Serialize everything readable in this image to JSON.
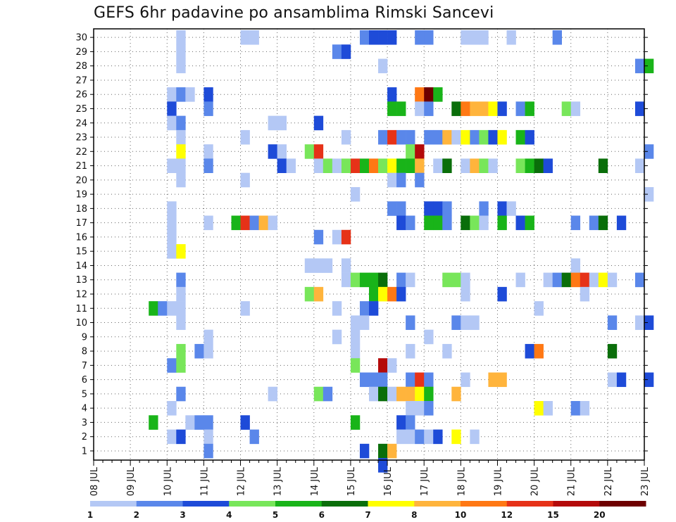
{
  "chart_data": {
    "type": "heatmap",
    "title": "GEFS 6hr padavine po ansamblima Rimski Sancevi",
    "xlabel": "",
    "ylabel": "",
    "x_ticks": [
      "08 JUL",
      "09 JUL",
      "10 JUL",
      "11 JUL",
      "12 JUL",
      "13 JUL",
      "14 JUL",
      "15 JUL",
      "16 JUL",
      "17 JUL",
      "18 JUL",
      "19 JUL",
      "20 JUL",
      "21 JUL",
      "22 JUL",
      "23 JUL"
    ],
    "y_ticks": [
      "1",
      "2",
      "3",
      "4",
      "5",
      "6",
      "7",
      "8",
      "9",
      "10",
      "11",
      "12",
      "13",
      "14",
      "15",
      "16",
      "17",
      "18",
      "19",
      "20",
      "21",
      "22",
      "23",
      "24",
      "25",
      "26",
      "27",
      "28",
      "29",
      "30"
    ],
    "x_range": [
      "08 JUL 00Z",
      "23 JUL 00Z"
    ],
    "steps_per_day": 4,
    "grid": true,
    "legend": {
      "position": "bottom",
      "levels": [
        "1",
        "2",
        "3",
        "4",
        "5",
        "6",
        "7",
        "8",
        "10",
        "12",
        "15",
        "20"
      ],
      "colors": [
        "#b4c8f5",
        "#5a87ea",
        "#1e4bd8",
        "#78e65a",
        "#19b419",
        "#0a6e0a",
        "#ffff00",
        "#ffb43c",
        "#ff7814",
        "#e63218",
        "#b40a0a",
        "#6e0000"
      ]
    },
    "cells": [
      [
        30,
        9,
        0
      ],
      [
        30,
        16,
        0
      ],
      [
        30,
        17,
        0
      ],
      [
        30,
        29,
        1
      ],
      [
        30,
        30,
        2
      ],
      [
        30,
        31,
        2
      ],
      [
        30,
        32,
        2
      ],
      [
        30,
        35,
        1
      ],
      [
        30,
        36,
        1
      ],
      [
        30,
        40,
        0
      ],
      [
        30,
        41,
        0
      ],
      [
        30,
        42,
        0
      ],
      [
        30,
        45,
        0
      ],
      [
        30,
        50,
        1
      ],
      [
        29,
        9,
        0
      ],
      [
        29,
        26,
        1
      ],
      [
        29,
        27,
        2
      ],
      [
        28,
        9,
        0
      ],
      [
        28,
        31,
        0
      ],
      [
        28,
        59,
        1
      ],
      [
        28,
        60,
        4
      ],
      [
        26,
        8,
        0
      ],
      [
        26,
        9,
        1
      ],
      [
        26,
        10,
        0
      ],
      [
        26,
        12,
        2
      ],
      [
        26,
        32,
        2
      ],
      [
        26,
        35,
        8
      ],
      [
        26,
        36,
        11
      ],
      [
        26,
        37,
        4
      ],
      [
        25,
        8,
        2
      ],
      [
        25,
        12,
        1
      ],
      [
        25,
        32,
        4
      ],
      [
        25,
        33,
        4
      ],
      [
        25,
        35,
        0
      ],
      [
        25,
        36,
        1
      ],
      [
        25,
        39,
        5
      ],
      [
        25,
        40,
        8
      ],
      [
        25,
        41,
        7
      ],
      [
        25,
        42,
        7
      ],
      [
        25,
        43,
        6
      ],
      [
        25,
        44,
        2
      ],
      [
        25,
        46,
        1
      ],
      [
        25,
        47,
        4
      ],
      [
        25,
        51,
        3
      ],
      [
        25,
        52,
        0
      ],
      [
        25,
        59,
        2
      ],
      [
        24,
        8,
        0
      ],
      [
        24,
        9,
        1
      ],
      [
        24,
        19,
        0
      ],
      [
        24,
        20,
        0
      ],
      [
        24,
        24,
        2
      ],
      [
        23,
        9,
        0
      ],
      [
        23,
        16,
        0
      ],
      [
        23,
        27,
        0
      ],
      [
        23,
        31,
        1
      ],
      [
        23,
        32,
        9
      ],
      [
        23,
        33,
        1
      ],
      [
        23,
        34,
        1
      ],
      [
        23,
        36,
        1
      ],
      [
        23,
        37,
        1
      ],
      [
        23,
        38,
        7
      ],
      [
        23,
        39,
        0
      ],
      [
        23,
        40,
        6
      ],
      [
        23,
        41,
        1
      ],
      [
        23,
        42,
        3
      ],
      [
        23,
        43,
        2
      ],
      [
        23,
        44,
        6
      ],
      [
        23,
        46,
        4
      ],
      [
        23,
        47,
        2
      ],
      [
        22,
        9,
        6
      ],
      [
        22,
        12,
        0
      ],
      [
        22,
        19,
        2
      ],
      [
        22,
        20,
        0
      ],
      [
        22,
        23,
        3
      ],
      [
        22,
        24,
        9
      ],
      [
        22,
        34,
        3
      ],
      [
        22,
        35,
        10
      ],
      [
        22,
        60,
        1
      ],
      [
        21,
        8,
        0
      ],
      [
        21,
        9,
        0
      ],
      [
        21,
        12,
        1
      ],
      [
        21,
        20,
        2
      ],
      [
        21,
        21,
        0
      ],
      [
        21,
        24,
        0
      ],
      [
        21,
        25,
        3
      ],
      [
        21,
        26,
        0
      ],
      [
        21,
        27,
        3
      ],
      [
        21,
        28,
        9
      ],
      [
        21,
        29,
        4
      ],
      [
        21,
        30,
        8
      ],
      [
        21,
        31,
        3
      ],
      [
        21,
        32,
        6
      ],
      [
        21,
        33,
        4
      ],
      [
        21,
        34,
        4
      ],
      [
        21,
        35,
        7
      ],
      [
        21,
        37,
        0
      ],
      [
        21,
        38,
        5
      ],
      [
        21,
        40,
        0
      ],
      [
        21,
        41,
        7
      ],
      [
        21,
        42,
        3
      ],
      [
        21,
        43,
        0
      ],
      [
        21,
        46,
        3
      ],
      [
        21,
        47,
        4
      ],
      [
        21,
        48,
        5
      ],
      [
        21,
        49,
        2
      ],
      [
        21,
        55,
        5
      ],
      [
        21,
        59,
        0
      ],
      [
        20,
        9,
        0
      ],
      [
        20,
        16,
        0
      ],
      [
        20,
        32,
        0
      ],
      [
        20,
        33,
        1
      ],
      [
        20,
        35,
        1
      ],
      [
        19,
        28,
        0
      ],
      [
        19,
        60,
        0
      ],
      [
        18,
        8,
        0
      ],
      [
        18,
        32,
        1
      ],
      [
        18,
        33,
        1
      ],
      [
        18,
        36,
        2
      ],
      [
        18,
        37,
        2
      ],
      [
        18,
        38,
        1
      ],
      [
        18,
        42,
        1
      ],
      [
        18,
        44,
        2
      ],
      [
        18,
        45,
        0
      ],
      [
        17,
        8,
        0
      ],
      [
        17,
        12,
        0
      ],
      [
        17,
        15,
        4
      ],
      [
        17,
        16,
        9
      ],
      [
        17,
        17,
        1
      ],
      [
        17,
        18,
        7
      ],
      [
        17,
        19,
        0
      ],
      [
        17,
        33,
        2
      ],
      [
        17,
        34,
        1
      ],
      [
        17,
        36,
        4
      ],
      [
        17,
        37,
        4
      ],
      [
        17,
        38,
        1
      ],
      [
        17,
        40,
        5
      ],
      [
        17,
        41,
        3
      ],
      [
        17,
        42,
        0
      ],
      [
        17,
        44,
        4
      ],
      [
        17,
        46,
        2
      ],
      [
        17,
        47,
        4
      ],
      [
        17,
        52,
        1
      ],
      [
        17,
        54,
        1
      ],
      [
        17,
        55,
        5
      ],
      [
        17,
        57,
        2
      ],
      [
        16,
        8,
        0
      ],
      [
        16,
        24,
        1
      ],
      [
        16,
        26,
        0
      ],
      [
        16,
        27,
        9
      ],
      [
        15,
        8,
        0
      ],
      [
        15,
        9,
        6
      ],
      [
        14,
        23,
        0
      ],
      [
        14,
        24,
        0
      ],
      [
        14,
        25,
        0
      ],
      [
        14,
        27,
        0
      ],
      [
        14,
        52,
        0
      ],
      [
        13,
        9,
        1
      ],
      [
        13,
        27,
        0
      ],
      [
        13,
        28,
        3
      ],
      [
        13,
        29,
        4
      ],
      [
        13,
        30,
        4
      ],
      [
        13,
        31,
        5
      ],
      [
        13,
        33,
        1
      ],
      [
        13,
        34,
        0
      ],
      [
        13,
        38,
        3
      ],
      [
        13,
        39,
        3
      ],
      [
        13,
        40,
        0
      ],
      [
        13,
        46,
        0
      ],
      [
        13,
        49,
        0
      ],
      [
        13,
        50,
        1
      ],
      [
        13,
        51,
        5
      ],
      [
        13,
        52,
        8
      ],
      [
        13,
        53,
        9
      ],
      [
        13,
        54,
        0
      ],
      [
        13,
        55,
        6
      ],
      [
        13,
        56,
        0
      ],
      [
        13,
        59,
        1
      ],
      [
        12,
        9,
        0
      ],
      [
        12,
        23,
        3
      ],
      [
        12,
        24,
        7
      ],
      [
        12,
        30,
        4
      ],
      [
        12,
        31,
        6
      ],
      [
        12,
        32,
        8
      ],
      [
        12,
        33,
        2
      ],
      [
        12,
        40,
        0
      ],
      [
        12,
        44,
        2
      ],
      [
        12,
        53,
        0
      ],
      [
        11,
        6,
        4
      ],
      [
        11,
        7,
        1
      ],
      [
        11,
        8,
        0
      ],
      [
        11,
        9,
        0
      ],
      [
        11,
        16,
        0
      ],
      [
        11,
        26,
        0
      ],
      [
        11,
        29,
        1
      ],
      [
        11,
        30,
        2
      ],
      [
        11,
        48,
        0
      ],
      [
        10,
        9,
        0
      ],
      [
        10,
        28,
        0
      ],
      [
        10,
        29,
        0
      ],
      [
        10,
        34,
        1
      ],
      [
        10,
        39,
        1
      ],
      [
        10,
        40,
        0
      ],
      [
        10,
        41,
        0
      ],
      [
        10,
        56,
        1
      ],
      [
        10,
        59,
        0
      ],
      [
        10,
        60,
        2
      ],
      [
        9,
        12,
        0
      ],
      [
        9,
        26,
        0
      ],
      [
        9,
        28,
        0
      ],
      [
        9,
        36,
        0
      ],
      [
        8,
        9,
        3
      ],
      [
        8,
        11,
        1
      ],
      [
        8,
        12,
        0
      ],
      [
        8,
        28,
        0
      ],
      [
        8,
        34,
        0
      ],
      [
        8,
        38,
        0
      ],
      [
        8,
        47,
        2
      ],
      [
        8,
        48,
        8
      ],
      [
        8,
        56,
        5
      ],
      [
        7,
        8,
        1
      ],
      [
        7,
        9,
        3
      ],
      [
        7,
        28,
        3
      ],
      [
        7,
        31,
        10
      ],
      [
        7,
        32,
        0
      ],
      [
        6,
        29,
        1
      ],
      [
        6,
        30,
        1
      ],
      [
        6,
        31,
        1
      ],
      [
        6,
        34,
        1
      ],
      [
        6,
        35,
        9
      ],
      [
        6,
        36,
        1
      ],
      [
        6,
        40,
        0
      ],
      [
        6,
        43,
        7
      ],
      [
        6,
        44,
        7
      ],
      [
        6,
        56,
        0
      ],
      [
        6,
        57,
        2
      ],
      [
        6,
        60,
        2
      ],
      [
        5,
        9,
        1
      ],
      [
        5,
        19,
        0
      ],
      [
        5,
        24,
        3
      ],
      [
        5,
        25,
        1
      ],
      [
        5,
        30,
        0
      ],
      [
        5,
        31,
        5
      ],
      [
        5,
        32,
        0
      ],
      [
        5,
        33,
        7
      ],
      [
        5,
        34,
        7
      ],
      [
        5,
        35,
        6
      ],
      [
        5,
        36,
        4
      ],
      [
        5,
        39,
        7
      ],
      [
        4,
        8,
        0
      ],
      [
        4,
        34,
        0
      ],
      [
        4,
        35,
        0
      ],
      [
        4,
        36,
        1
      ],
      [
        4,
        48,
        6
      ],
      [
        4,
        49,
        0
      ],
      [
        4,
        52,
        1
      ],
      [
        4,
        53,
        0
      ],
      [
        3,
        6,
        4
      ],
      [
        3,
        10,
        0
      ],
      [
        3,
        11,
        1
      ],
      [
        3,
        12,
        1
      ],
      [
        3,
        16,
        2
      ],
      [
        3,
        28,
        4
      ],
      [
        3,
        33,
        2
      ],
      [
        3,
        34,
        1
      ],
      [
        2,
        8,
        0
      ],
      [
        2,
        9,
        2
      ],
      [
        2,
        12,
        0
      ],
      [
        2,
        17,
        1
      ],
      [
        2,
        33,
        0
      ],
      [
        2,
        34,
        0
      ],
      [
        2,
        35,
        1
      ],
      [
        2,
        36,
        0
      ],
      [
        2,
        37,
        2
      ],
      [
        2,
        39,
        6
      ],
      [
        2,
        41,
        0
      ],
      [
        1,
        12,
        1
      ],
      [
        1,
        29,
        2
      ],
      [
        1,
        31,
        5
      ],
      [
        1,
        32,
        7
      ],
      [
        0,
        31,
        2
      ]
    ]
  }
}
